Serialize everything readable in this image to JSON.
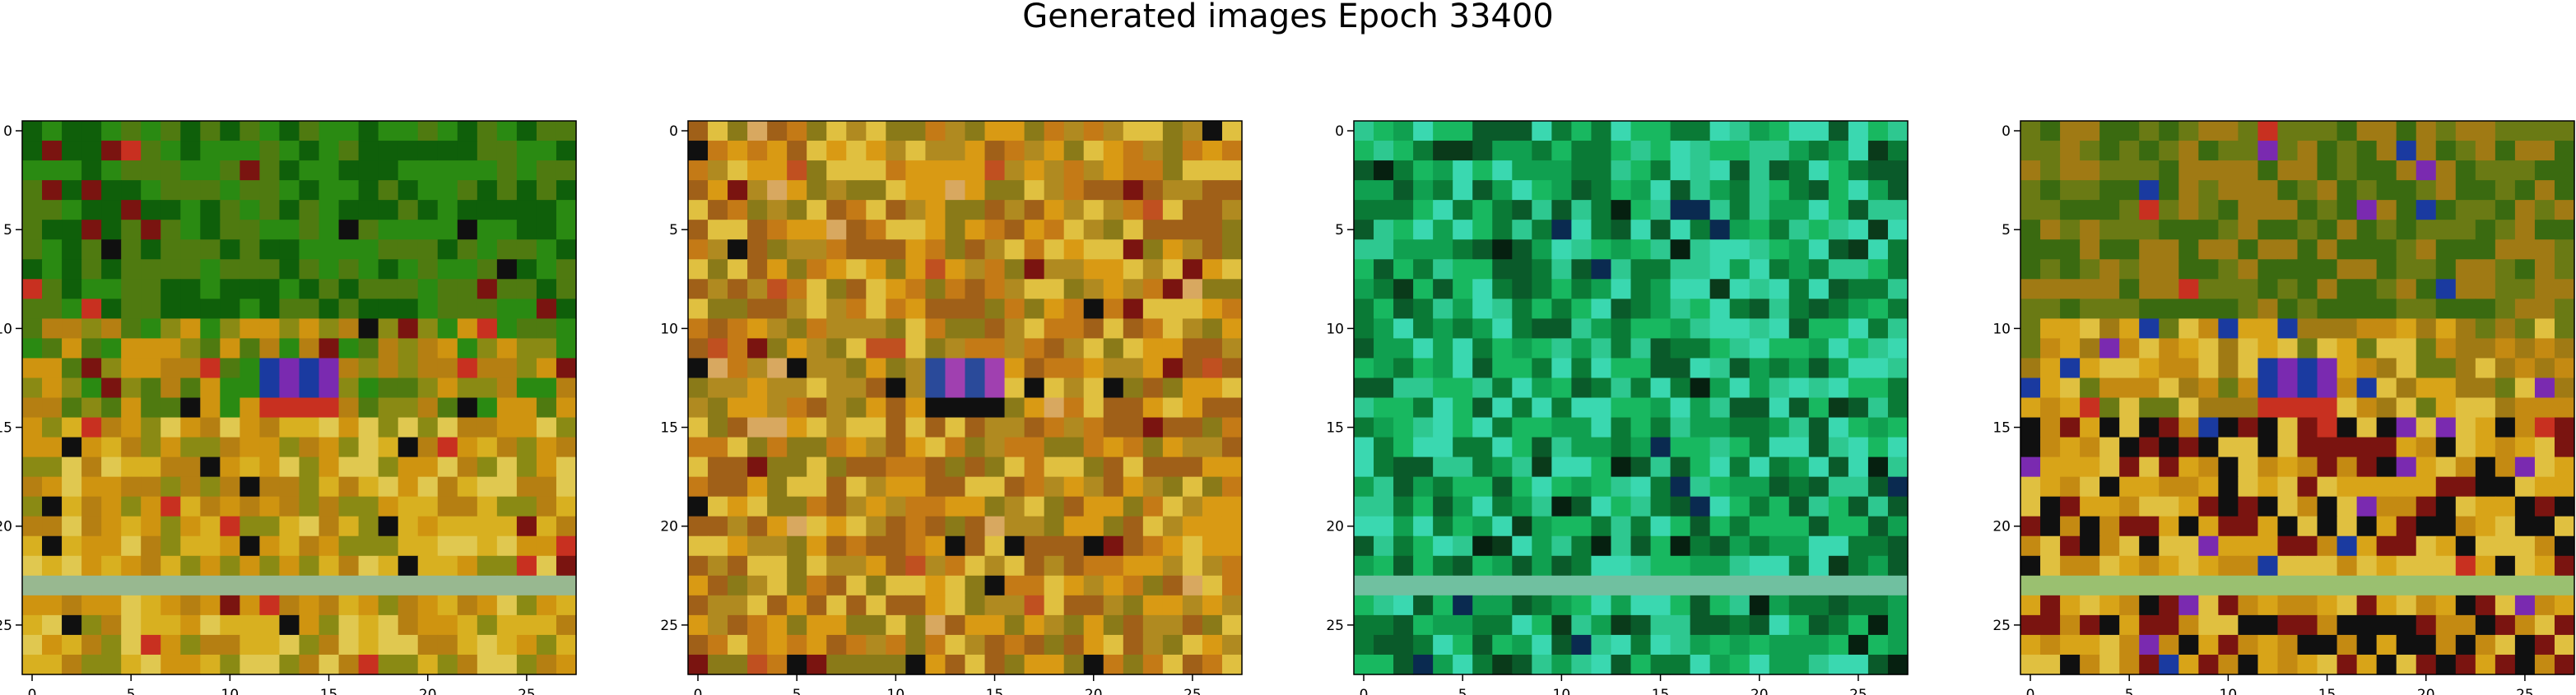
{
  "title": "Generated images Epoch 33400",
  "chart_data": [
    {
      "type": "heatmap",
      "rows": 28,
      "cols": 28,
      "xlim": [
        -0.5,
        27.5
      ],
      "ylim": [
        27.5,
        -0.5
      ],
      "xticks": [
        0,
        5,
        10,
        15,
        20,
        25
      ],
      "yticks": [
        0,
        5,
        10,
        15,
        20,
        25
      ],
      "palette": [
        "#0f5f0a",
        "#2a8a12",
        "#4f7a10",
        "#8a8a14",
        "#b57f12",
        "#cf9410",
        "#d8b020",
        "#e0c850",
        "#101010",
        "#7a1410",
        "#c83020",
        "#1a3aa0",
        "#7a2ab0",
        "#98b890"
      ],
      "motif": "warm-green"
    },
    {
      "type": "heatmap",
      "rows": 28,
      "cols": 28,
      "xlim": [
        -0.5,
        27.5
      ],
      "ylim": [
        27.5,
        -0.5
      ],
      "xticks": [
        0,
        5,
        10,
        15,
        20,
        25
      ],
      "yticks": [
        0,
        5,
        10,
        15,
        20,
        25
      ],
      "palette": [
        "#a06018",
        "#c47a16",
        "#d99a14",
        "#b08a20",
        "#8a7a18",
        "#e0c040",
        "#d8a860",
        "#c05020",
        "#7a1410",
        "#101010",
        "#2a4a9a",
        "#a040b0",
        "#6a8a20"
      ],
      "motif": "warm"
    },
    {
      "type": "heatmap",
      "rows": 28,
      "cols": 28,
      "xlim": [
        -0.5,
        27.5
      ],
      "ylim": [
        27.5,
        -0.5
      ],
      "xticks": [
        0,
        5,
        10,
        15,
        20,
        25
      ],
      "yticks": [
        0,
        5,
        10,
        15,
        20,
        25
      ],
      "palette": [
        "#0a5a2a",
        "#0a7a36",
        "#10a050",
        "#18b860",
        "#2ec890",
        "#3ad8b0",
        "#0a3a1a",
        "#062010",
        "#0a2a50",
        "#c06a10",
        "#70c0a0"
      ],
      "motif": "green"
    },
    {
      "type": "heatmap",
      "rows": 28,
      "cols": 28,
      "xlim": [
        -0.5,
        27.5
      ],
      "ylim": [
        27.5,
        -0.5
      ],
      "xticks": [
        0,
        5,
        10,
        15,
        20,
        25
      ],
      "yticks": [
        0,
        5,
        10,
        15,
        20,
        25
      ],
      "palette": [
        "#3a6a10",
        "#6a7a14",
        "#a07a14",
        "#c48a12",
        "#d8a418",
        "#e0c040",
        "#101010",
        "#7a1410",
        "#c83020",
        "#1a3aa0",
        "#7a2ab0",
        "#9ac070"
      ],
      "motif": "warm-green"
    }
  ]
}
